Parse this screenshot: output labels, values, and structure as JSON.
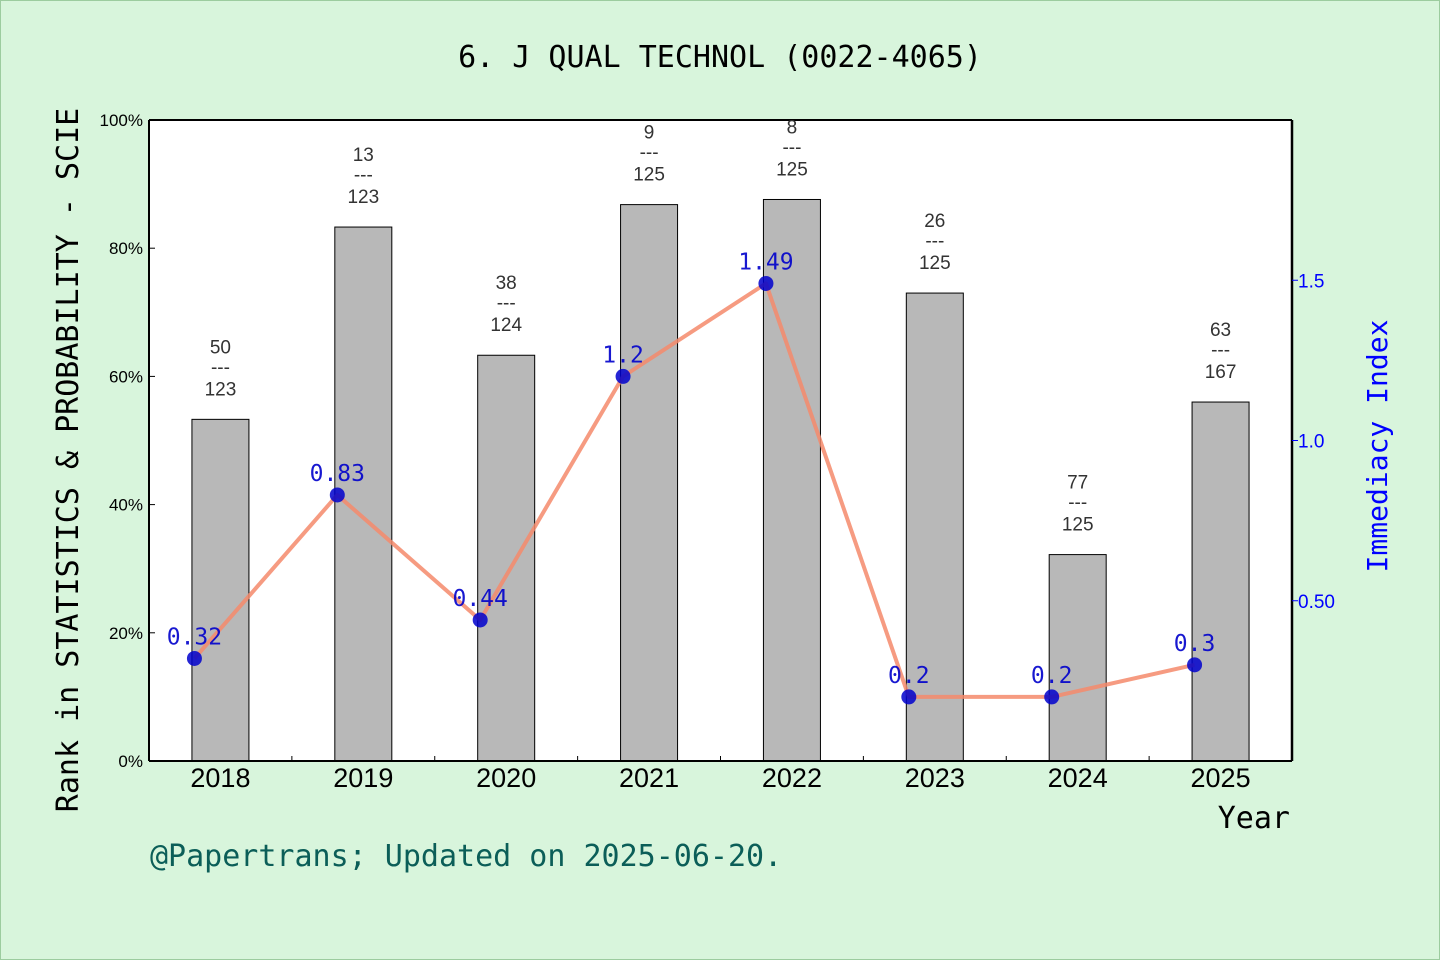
{
  "title": "6. J QUAL TECHNOL (0022-4065)",
  "footer": "@Papertrans; Updated on 2025-06-20.",
  "colors": {
    "background": "#d8f5dc",
    "bar": "#b8b8b8",
    "line": "#f4896b",
    "marker": "#0000cc",
    "right_axis": "#0000ff"
  },
  "chart_data": {
    "type": "bar",
    "categories": [
      "2018",
      "2019",
      "2020",
      "2021",
      "2022",
      "2023",
      "2024",
      "2025"
    ],
    "xlabel": "Year",
    "ylabel": "Rank in STATISTICS & PROBABILITY - SCIE",
    "ylabel_right": "Immediacy Index",
    "ylim": [
      0,
      100
    ],
    "yticks": [
      "0%",
      "20%",
      "40%",
      "60%",
      "80%",
      "100%"
    ],
    "ylim_right": [
      0,
      2.0
    ],
    "yticks_right": [
      "0.50",
      "1.0",
      "1.5"
    ],
    "yticks_right_values": [
      0.5,
      1.0,
      1.5
    ],
    "series": [
      {
        "type": "bar",
        "values": [
          53.3,
          83.3,
          63.3,
          86.8,
          87.6,
          73.0,
          32.2,
          56.0
        ],
        "rank_labels": [
          {
            "rank": "50",
            "sep": "---",
            "total": "123"
          },
          {
            "rank": "13",
            "sep": "---",
            "total": "123"
          },
          {
            "rank": "38",
            "sep": "---",
            "total": "124"
          },
          {
            "rank": "9",
            "sep": "---",
            "total": "125"
          },
          {
            "rank": "8",
            "sep": "---",
            "total": "125"
          },
          {
            "rank": "26",
            "sep": "---",
            "total": "125"
          },
          {
            "rank": "77",
            "sep": "---",
            "total": "125"
          },
          {
            "rank": "63",
            "sep": "---",
            "total": "167"
          }
        ]
      },
      {
        "type": "line",
        "axis": "right",
        "values": [
          0.32,
          0.83,
          0.44,
          1.2,
          1.49,
          0.2,
          0.2,
          0.3
        ],
        "labels": [
          "0.32",
          "0.83",
          "0.44",
          "1.2",
          "1.49",
          "0.2",
          "0.2",
          "0.3"
        ]
      }
    ]
  }
}
